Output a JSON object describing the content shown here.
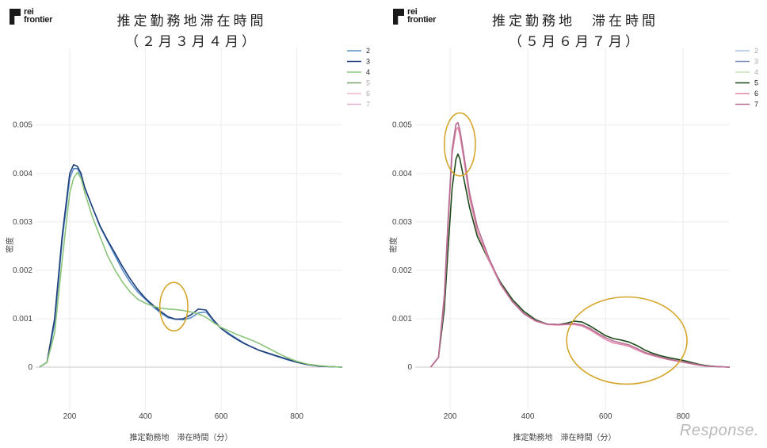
{
  "logo_text": [
    "rei",
    "frontier"
  ],
  "watermark": "Response.",
  "chart_data": [
    {
      "type": "line",
      "title": "推定勤務地滞在時間",
      "subtitle": "（２月３月４月）",
      "xlabel": "推定勤務地　滞在時間（分）",
      "ylabel": "密度",
      "xlim": [
        110,
        920
      ],
      "ylim": [
        -0.0009,
        0.0066
      ],
      "xticks": [
        200,
        400,
        600,
        800
      ],
      "xtick_labels": [
        "200",
        "400",
        "600",
        "800"
      ],
      "yticks": [
        0,
        0.001,
        0.002,
        0.003,
        0.004,
        0.005
      ],
      "ytick_labels": [
        "0",
        "0.001",
        "0.002",
        "0.003",
        "0.004",
        "0.005"
      ],
      "grid": true,
      "legend_position": "top-right",
      "annotations": [
        {
          "type": "circle",
          "center": [
            475,
            0.00125
          ],
          "rx": 37,
          "ry": 0.0005,
          "color": "#d4a72c"
        }
      ],
      "series": [
        {
          "name": "2",
          "color": "#5b8fc8",
          "visible": true,
          "x": [
            120,
            140,
            160,
            180,
            200,
            210,
            220,
            230,
            240,
            260,
            280,
            300,
            320,
            340,
            360,
            380,
            400,
            420,
            440,
            460,
            480,
            500,
            520,
            540,
            560,
            580,
            600,
            620,
            640,
            660,
            680,
            700,
            720,
            740,
            760,
            780,
            800,
            830,
            860,
            890,
            920
          ],
          "y": [
            0,
            0.0001,
            0.0009,
            0.0026,
            0.0039,
            0.0041,
            0.0041,
            0.00395,
            0.0037,
            0.0033,
            0.0029,
            0.0026,
            0.0023,
            0.002,
            0.00175,
            0.00155,
            0.0014,
            0.00125,
            0.00112,
            0.00102,
            0.00099,
            0.00098,
            0.00102,
            0.00112,
            0.00114,
            0.00095,
            0.0008,
            0.0007,
            0.0006,
            0.0005,
            0.00042,
            0.00035,
            0.00029,
            0.00024,
            0.00019,
            0.00014,
            0.0001,
            5e-05,
            2e-05,
            1e-05,
            0
          ]
        },
        {
          "name": "3",
          "color": "#1f3f7a",
          "visible": true,
          "x": [
            120,
            140,
            160,
            180,
            200,
            210,
            220,
            230,
            240,
            260,
            280,
            300,
            320,
            340,
            360,
            380,
            400,
            420,
            440,
            460,
            480,
            500,
            520,
            540,
            560,
            580,
            600,
            620,
            640,
            660,
            680,
            700,
            720,
            740,
            760,
            780,
            800,
            830,
            860,
            890,
            920
          ],
          "y": [
            0,
            0.0001,
            0.001,
            0.0027,
            0.004,
            0.00418,
            0.00415,
            0.004,
            0.0037,
            0.0033,
            0.00292,
            0.00262,
            0.00235,
            0.00207,
            0.00182,
            0.0016,
            0.00142,
            0.00128,
            0.00115,
            0.00104,
            0.00099,
            0.001,
            0.00108,
            0.0012,
            0.00118,
            0.00097,
            0.0008,
            0.00068,
            0.00058,
            0.00049,
            0.00042,
            0.00035,
            0.0003,
            0.00025,
            0.0002,
            0.00015,
            0.0001,
            5e-05,
            2e-05,
            1e-05,
            0
          ]
        },
        {
          "name": "4",
          "color": "#8cc47a",
          "visible": true,
          "x": [
            120,
            140,
            160,
            180,
            200,
            210,
            220,
            230,
            240,
            260,
            280,
            300,
            320,
            340,
            360,
            380,
            400,
            420,
            440,
            460,
            480,
            500,
            520,
            540,
            560,
            580,
            600,
            620,
            640,
            660,
            680,
            700,
            720,
            740,
            760,
            780,
            800,
            830,
            860,
            890,
            920
          ],
          "y": [
            0,
            0.0001,
            0.0007,
            0.0022,
            0.0036,
            0.0039,
            0.00402,
            0.0039,
            0.0036,
            0.0031,
            0.0027,
            0.0023,
            0.002,
            0.00175,
            0.00155,
            0.0014,
            0.00132,
            0.00126,
            0.00122,
            0.0012,
            0.00119,
            0.00117,
            0.00114,
            0.0011,
            0.00103,
            0.00092,
            0.00082,
            0.00075,
            0.00068,
            0.00062,
            0.00056,
            0.00049,
            0.00041,
            0.00033,
            0.00025,
            0.00018,
            0.00012,
            6e-05,
            3e-05,
            1e-05,
            0
          ]
        },
        {
          "name": "5",
          "color": "#7aa36c",
          "visible": false
        },
        {
          "name": "6",
          "color": "#f0b8c8",
          "visible": false
        },
        {
          "name": "7",
          "color": "#ddb0d0",
          "visible": false
        }
      ]
    },
    {
      "type": "line",
      "title": "推定勤務地　滞在時間",
      "subtitle": "（５月６月７月）",
      "xlabel": "推定勤務地　滞在時間（分）",
      "ylabel": "密度",
      "xlim": [
        110,
        920
      ],
      "ylim": [
        -0.0009,
        0.0066
      ],
      "xticks": [
        200,
        400,
        600,
        800
      ],
      "xtick_labels": [
        "200",
        "400",
        "600",
        "800"
      ],
      "yticks": [
        0,
        0.001,
        0.002,
        0.003,
        0.004,
        0.005
      ],
      "ytick_labels": [
        "0",
        "0.001",
        "0.002",
        "0.003",
        "0.004",
        "0.005"
      ],
      "grid": true,
      "legend_position": "top-right",
      "annotations": [
        {
          "type": "circle",
          "center": [
            225,
            0.0046
          ],
          "rx": 40,
          "ry": 0.00065,
          "color": "#d4a72c"
        },
        {
          "type": "circle",
          "center": [
            655,
            0.00055
          ],
          "rx": 155,
          "ry": 0.0009,
          "color": "#d4a72c"
        }
      ],
      "series": [
        {
          "name": "2",
          "color": "#a9c4e4",
          "visible": false
        },
        {
          "name": "3",
          "color": "#7a90b8",
          "visible": false
        },
        {
          "name": "4",
          "color": "#c4e0b4",
          "visible": false
        },
        {
          "name": "5",
          "color": "#1d4a1a",
          "visible": true,
          "x": [
            150,
            170,
            185,
            195,
            205,
            215,
            220,
            225,
            235,
            250,
            270,
            300,
            330,
            360,
            390,
            420,
            450,
            480,
            500,
            520,
            540,
            560,
            580,
            600,
            620,
            640,
            660,
            680,
            700,
            720,
            740,
            760,
            780,
            800,
            820,
            840,
            860,
            890,
            920
          ],
          "y": [
            0,
            0.0002,
            0.0012,
            0.0025,
            0.0037,
            0.0043,
            0.0044,
            0.0043,
            0.0039,
            0.0033,
            0.0027,
            0.0022,
            0.00175,
            0.0014,
            0.00115,
            0.00098,
            0.00089,
            0.00088,
            0.00091,
            0.00095,
            0.00093,
            0.00085,
            0.00075,
            0.00065,
            0.00059,
            0.00056,
            0.00052,
            0.00045,
            0.00036,
            0.00029,
            0.00024,
            0.0002,
            0.00017,
            0.00014,
            0.0001,
            6e-05,
            3e-05,
            1e-05,
            0
          ]
        },
        {
          "name": "6",
          "color": "#e28aa8",
          "visible": true,
          "x": [
            150,
            170,
            185,
            195,
            205,
            215,
            220,
            225,
            235,
            250,
            270,
            300,
            330,
            360,
            390,
            420,
            450,
            480,
            500,
            520,
            540,
            560,
            580,
            600,
            620,
            640,
            660,
            680,
            700,
            720,
            740,
            760,
            780,
            800,
            820,
            840,
            860,
            890,
            920
          ],
          "y": [
            0,
            0.0002,
            0.0014,
            0.003,
            0.0044,
            0.0049,
            0.00495,
            0.0048,
            0.0043,
            0.0035,
            0.0028,
            0.0022,
            0.0017,
            0.00135,
            0.0011,
            0.00095,
            0.00088,
            0.00087,
            0.00088,
            0.00088,
            0.00085,
            0.00077,
            0.00067,
            0.00057,
            0.0005,
            0.00047,
            0.00043,
            0.00036,
            0.00029,
            0.00024,
            0.0002,
            0.00016,
            0.00013,
            0.0001,
            7e-05,
            4e-05,
            2e-05,
            1e-05,
            0
          ]
        },
        {
          "name": "7",
          "color": "#b56c93",
          "visible": true,
          "x": [
            150,
            170,
            185,
            195,
            205,
            215,
            220,
            225,
            235,
            250,
            270,
            300,
            330,
            360,
            390,
            420,
            450,
            480,
            500,
            520,
            540,
            560,
            580,
            600,
            620,
            640,
            660,
            680,
            700,
            720,
            740,
            760,
            780,
            800,
            820,
            840,
            860,
            890,
            920
          ],
          "y": [
            0,
            0.0002,
            0.0015,
            0.0031,
            0.0045,
            0.00502,
            0.00505,
            0.0049,
            0.0044,
            0.0036,
            0.0029,
            0.00225,
            0.00172,
            0.00136,
            0.00111,
            0.00096,
            0.00089,
            0.00088,
            0.00089,
            0.0009,
            0.00087,
            0.0008,
            0.0007,
            0.00061,
            0.00054,
            0.0005,
            0.00046,
            0.00039,
            0.00031,
            0.00026,
            0.00021,
            0.00017,
            0.00014,
            0.00011,
            8e-05,
            5e-05,
            2e-05,
            1e-05,
            0
          ]
        }
      ]
    }
  ]
}
